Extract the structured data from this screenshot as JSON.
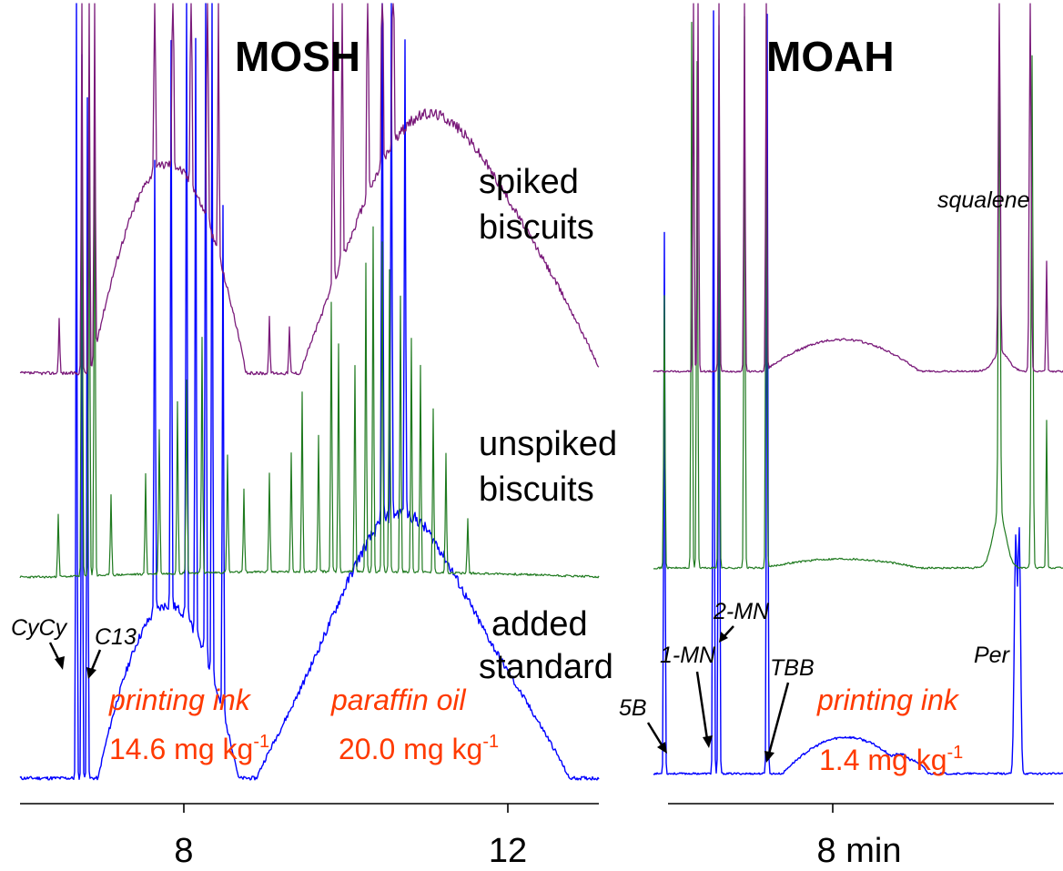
{
  "chart_data": [
    {
      "type": "line",
      "title": "MOSH",
      "x_unit": "min",
      "xlim": [
        6.0,
        13.2
      ],
      "xticks": [
        8,
        12
      ],
      "tick_labels": [
        "8",
        "12"
      ],
      "series": [
        {
          "name": "spiked biscuits",
          "label_lines": [
            "spiked",
            "biscuits"
          ],
          "color": "#7a1a7a"
        },
        {
          "name": "unspiked biscuits",
          "label_lines": [
            "unspiked",
            "biscuits"
          ],
          "color": "#1f7a1f"
        },
        {
          "name": "added standard",
          "label_lines": [
            "added",
            "standard"
          ],
          "color": "#0000ff"
        }
      ],
      "peak_labels": [
        "CyCy",
        "C13"
      ],
      "annotations": [
        {
          "text": "printing ink",
          "style": "italic"
        },
        {
          "text": "14.6 mg kg-1",
          "value": "14.6",
          "unit": "mg kg",
          "exponent": "-1"
        },
        {
          "text": "paraffin oil",
          "style": "italic"
        },
        {
          "text": "20.0 mg kg-1",
          "value": "20.0",
          "unit": "mg kg",
          "exponent": "-1"
        }
      ],
      "humps": [
        {
          "trace": "added standard",
          "x_start": 7.6,
          "x_end": 8.7,
          "label": "printing ink"
        },
        {
          "trace": "added standard",
          "x_start": 9.9,
          "x_end": 13.0,
          "label": "paraffin oil"
        }
      ]
    },
    {
      "type": "line",
      "title": "MOAH",
      "x_unit": "min",
      "xlim": [
        6.0,
        10.4
      ],
      "xticks": [
        8
      ],
      "tick_labels": [
        "8 min"
      ],
      "series": [
        {
          "name": "spiked biscuits",
          "color": "#7a1a7a"
        },
        {
          "name": "unspiked biscuits",
          "color": "#1f7a1f"
        },
        {
          "name": "added standard",
          "color": "#0000ff"
        }
      ],
      "peak_labels": [
        "squalene",
        "2-MN",
        "1-MN",
        "TBB",
        "5B",
        "Per"
      ],
      "annotations": [
        {
          "text": "printing ink",
          "style": "italic"
        },
        {
          "text": "1.4 mg kg-1",
          "value": "1.4",
          "unit": "mg kg",
          "exponent": "-1"
        }
      ],
      "humps": [
        {
          "trace": "added standard",
          "x_start": 7.7,
          "x_end": 8.8,
          "label": "printing ink"
        }
      ]
    }
  ]
}
